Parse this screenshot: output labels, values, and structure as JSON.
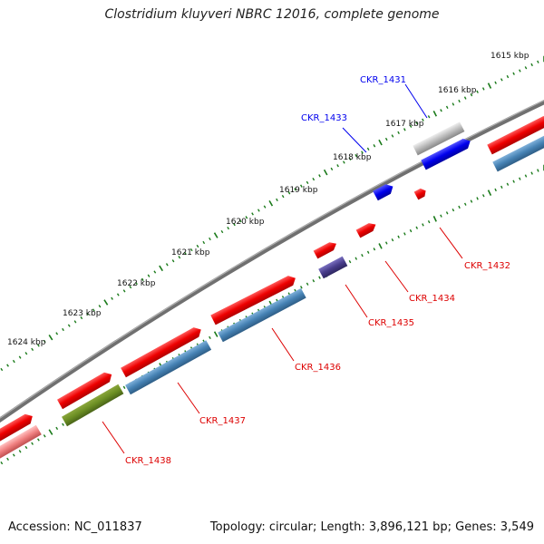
{
  "title": "Clostridium kluyveri NBRC 12016, complete genome",
  "footer": {
    "accession": "Accession: NC_011837",
    "summary": "Topology: circular; Length: 3,896,121 bp; Genes: 3,549"
  },
  "scale_labels": [
    "1615 kbp",
    "1616 kbp",
    "1617 kbp",
    "1618 kbp",
    "1619 kbp",
    "1620 kbp",
    "1621 kbp",
    "1622 kbp",
    "1623 kbp",
    "1624 kbp"
  ],
  "genes": [
    {
      "id": "CKR_1431",
      "color": "#0000ee"
    },
    {
      "id": "CKR_1432",
      "color": "#dd0000"
    },
    {
      "id": "CKR_1433",
      "color": "#0000ee"
    },
    {
      "id": "CKR_1434",
      "color": "#dd0000"
    },
    {
      "id": "CKR_1435",
      "color": "#dd0000"
    },
    {
      "id": "CKR_1436",
      "color": "#dd0000"
    },
    {
      "id": "CKR_1437",
      "color": "#dd0000"
    },
    {
      "id": "CKR_1438",
      "color": "#dd0000"
    }
  ],
  "colors": {
    "forward_cds": "#ee0000",
    "reverse_cds": "#4682b4",
    "tick": "#1a7a1a",
    "backbone": "#707070"
  }
}
